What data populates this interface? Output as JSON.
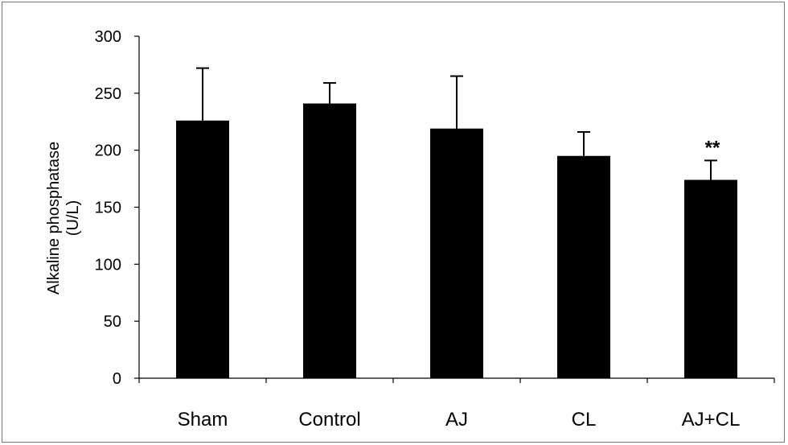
{
  "chart_data": {
    "type": "bar",
    "categories": [
      "Sham",
      "Control",
      "AJ",
      "CL",
      "AJ+CL"
    ],
    "values": [
      226,
      241,
      219,
      195,
      174
    ],
    "error_upper": [
      272,
      259,
      265,
      216,
      191
    ],
    "annotations": [
      "",
      "",
      "",
      "",
      "**"
    ],
    "ylabel_line1": "Alkaline phosphatase",
    "ylabel_line2": "(U/L)",
    "ylim": [
      0,
      300
    ],
    "yticks": [
      0,
      50,
      100,
      150,
      200,
      250,
      300
    ],
    "bar_color": "#000000",
    "grid": false,
    "legend": "none"
  }
}
